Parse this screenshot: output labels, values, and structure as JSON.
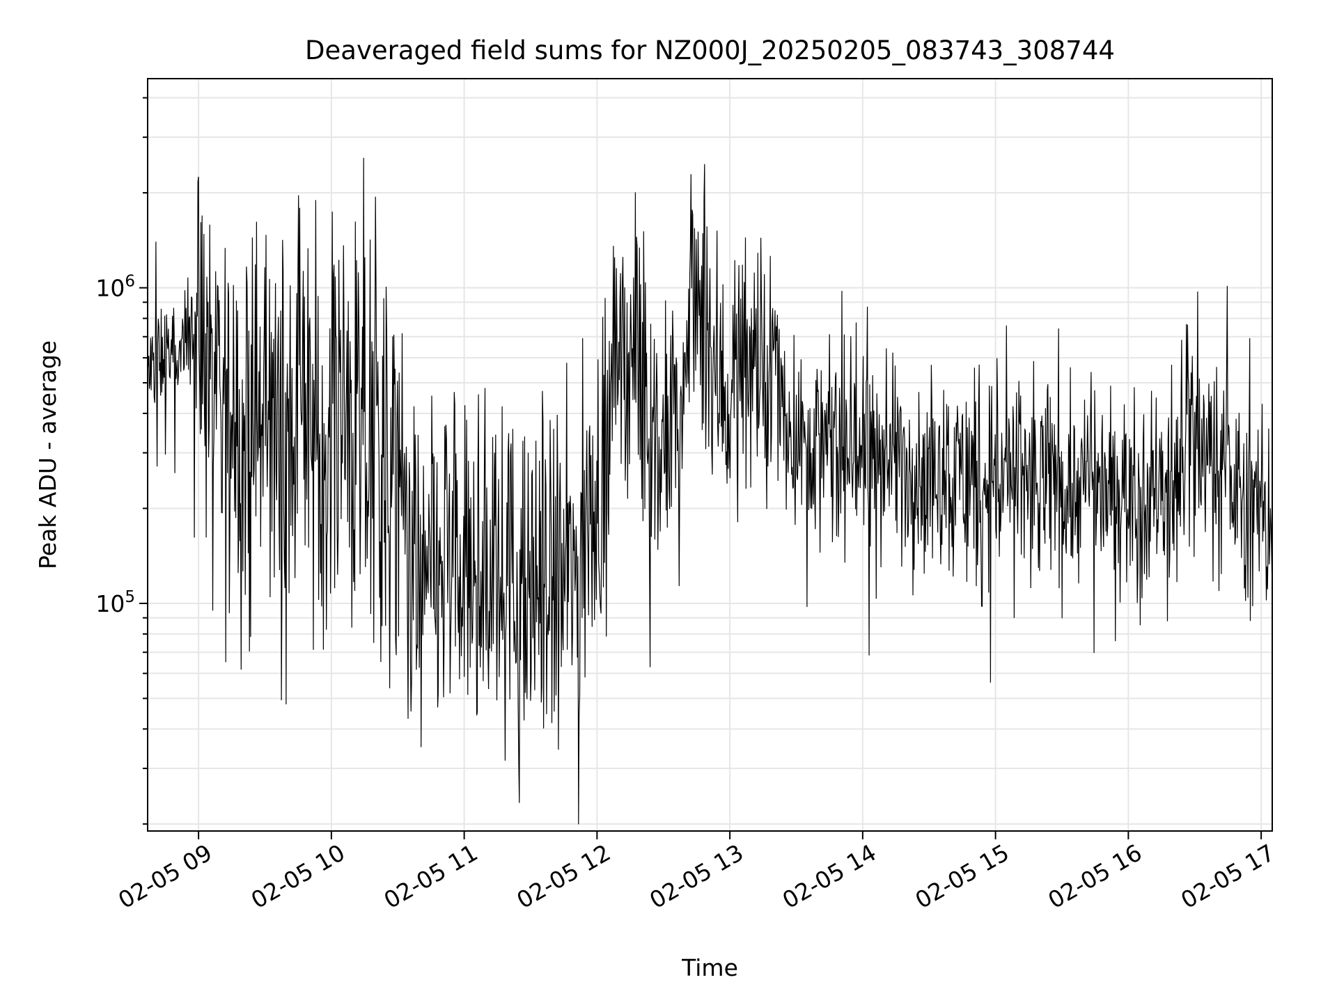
{
  "chart_data": {
    "type": "line",
    "title": "Deaveraged field sums for NZ000J_20250205_083743_308744",
    "xlabel": "Time",
    "ylabel": "Peak ADU - average",
    "x_scale": "time",
    "y_scale": "log",
    "xlim": [
      "2025-02-05T08:37:00",
      "2025-02-05T17:05:00"
    ],
    "ylim": [
      19000,
      4600000
    ],
    "grid": true,
    "legend": "none",
    "line_color": "#000000",
    "grid_color": "#e6e6e6",
    "x_ticks": [
      {
        "value": "2025-02-05T09:00:00",
        "label": "02-05 09"
      },
      {
        "value": "2025-02-05T10:00:00",
        "label": "02-05 10"
      },
      {
        "value": "2025-02-05T11:00:00",
        "label": "02-05 11"
      },
      {
        "value": "2025-02-05T12:00:00",
        "label": "02-05 12"
      },
      {
        "value": "2025-02-05T13:00:00",
        "label": "02-05 13"
      },
      {
        "value": "2025-02-05T14:00:00",
        "label": "02-05 14"
      },
      {
        "value": "2025-02-05T15:00:00",
        "label": "02-05 15"
      },
      {
        "value": "2025-02-05T16:00:00",
        "label": "02-05 16"
      },
      {
        "value": "2025-02-05T17:00:00",
        "label": "02-05 17"
      }
    ],
    "y_ticks": [
      {
        "value": 100000,
        "base": "10",
        "exp": "5"
      },
      {
        "value": 1000000,
        "base": "10",
        "exp": "6"
      }
    ],
    "series": [
      {
        "color": "#000000",
        "x": [
          "2025-02-05T08:37:00",
          "2025-02-05T08:45:00",
          "2025-02-05T08:51:00",
          "2025-02-05T08:55:00",
          "2025-02-05T09:03:00",
          "2025-02-05T09:08:00",
          "2025-02-05T09:16:00",
          "2025-02-05T09:20:00",
          "2025-02-05T09:31:00",
          "2025-02-05T09:39:00",
          "2025-02-05T09:46:00",
          "2025-02-05T09:54:00",
          "2025-02-05T10:02:00",
          "2025-02-05T10:06:00",
          "2025-02-05T10:14:00",
          "2025-02-05T10:20:00",
          "2025-02-05T10:27:00",
          "2025-02-05T10:31:00",
          "2025-02-05T10:35:00",
          "2025-02-05T10:40:00",
          "2025-02-05T10:48:00",
          "2025-02-05T10:55:00",
          "2025-02-05T11:03:00",
          "2025-02-05T11:11:00",
          "2025-02-05T11:17:00",
          "2025-02-05T11:24:00",
          "2025-02-05T11:28:00",
          "2025-02-05T11:33:00",
          "2025-02-05T11:43:00",
          "2025-02-05T11:52:00",
          "2025-02-05T11:58:00",
          "2025-02-05T12:05:00",
          "2025-02-05T12:09:00",
          "2025-02-05T12:18:00",
          "2025-02-05T12:25:00",
          "2025-02-05T12:34:00",
          "2025-02-05T12:38:00",
          "2025-02-05T12:43:00",
          "2025-02-05T12:52:00",
          "2025-02-05T13:00:00",
          "2025-02-05T13:06:00",
          "2025-02-05T13:10:00",
          "2025-02-05T13:15:00",
          "2025-02-05T13:20:00",
          "2025-02-05T13:28:00",
          "2025-02-05T13:36:00",
          "2025-02-05T13:45:00",
          "2025-02-05T13:55:00",
          "2025-02-05T14:05:00",
          "2025-02-05T14:15:00",
          "2025-02-05T14:25:00",
          "2025-02-05T14:35:00",
          "2025-02-05T14:45:00",
          "2025-02-05T14:55:00",
          "2025-02-05T15:05:00",
          "2025-02-05T15:15:00",
          "2025-02-05T15:25:00",
          "2025-02-05T15:35:00",
          "2025-02-05T15:45:00",
          "2025-02-05T15:55:00",
          "2025-02-05T16:05:00",
          "2025-02-05T16:15:00",
          "2025-02-05T16:20:00",
          "2025-02-05T16:25:00",
          "2025-02-05T16:30:00",
          "2025-02-05T16:40:00",
          "2025-02-05T16:50:00",
          "2025-02-05T17:00:00",
          "2025-02-05T17:05:00"
        ],
        "y": [
          520000,
          640000,
          560000,
          720000,
          700000,
          300000,
          450000,
          280000,
          420000,
          300000,
          480000,
          300000,
          500000,
          350000,
          280000,
          350000,
          250000,
          220000,
          160000,
          100000,
          120000,
          140000,
          110000,
          130000,
          140000,
          100000,
          90000,
          120000,
          110000,
          130000,
          200000,
          280000,
          700000,
          550000,
          280000,
          350000,
          320000,
          1200000,
          550000,
          450000,
          650000,
          600000,
          420000,
          600000,
          350000,
          330000,
          300000,
          310000,
          290000,
          300000,
          260000,
          270000,
          250000,
          260000,
          250000,
          230000,
          250000,
          230000,
          240000,
          230000,
          210000,
          230000,
          220000,
          320000,
          360000,
          280000,
          220000,
          190000,
          170000
        ]
      }
    ]
  }
}
